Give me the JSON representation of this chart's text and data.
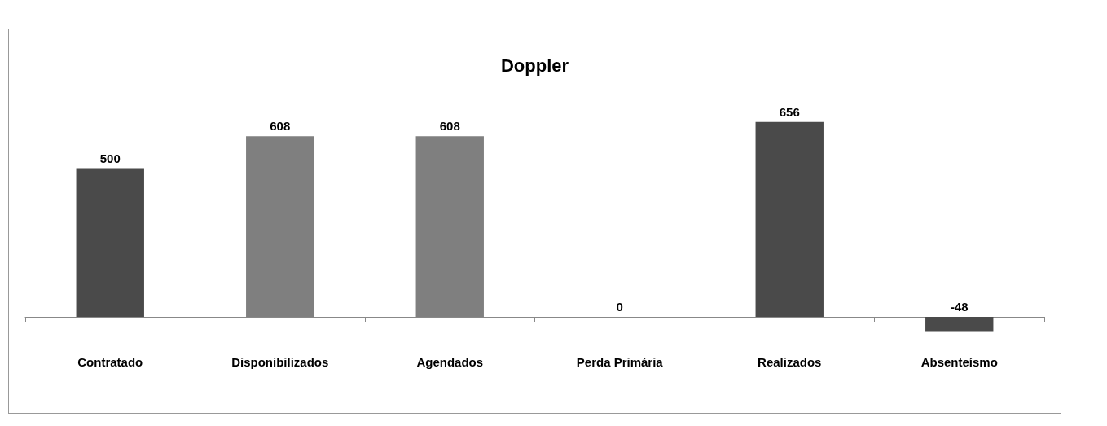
{
  "chart_data": {
    "type": "bar",
    "title": "Doppler",
    "categories": [
      "Contratado",
      "Disponibilizados",
      "Agendados",
      "Perda Primária",
      "Realizados",
      "Absenteísmo"
    ],
    "values": [
      500,
      608,
      608,
      0,
      656,
      -48
    ],
    "colors": [
      "#4a4a4a",
      "#7f7f7f",
      "#7f7f7f",
      "#7f7f7f",
      "#4a4a4a",
      "#4a4a4a"
    ],
    "data_labels": true
  }
}
